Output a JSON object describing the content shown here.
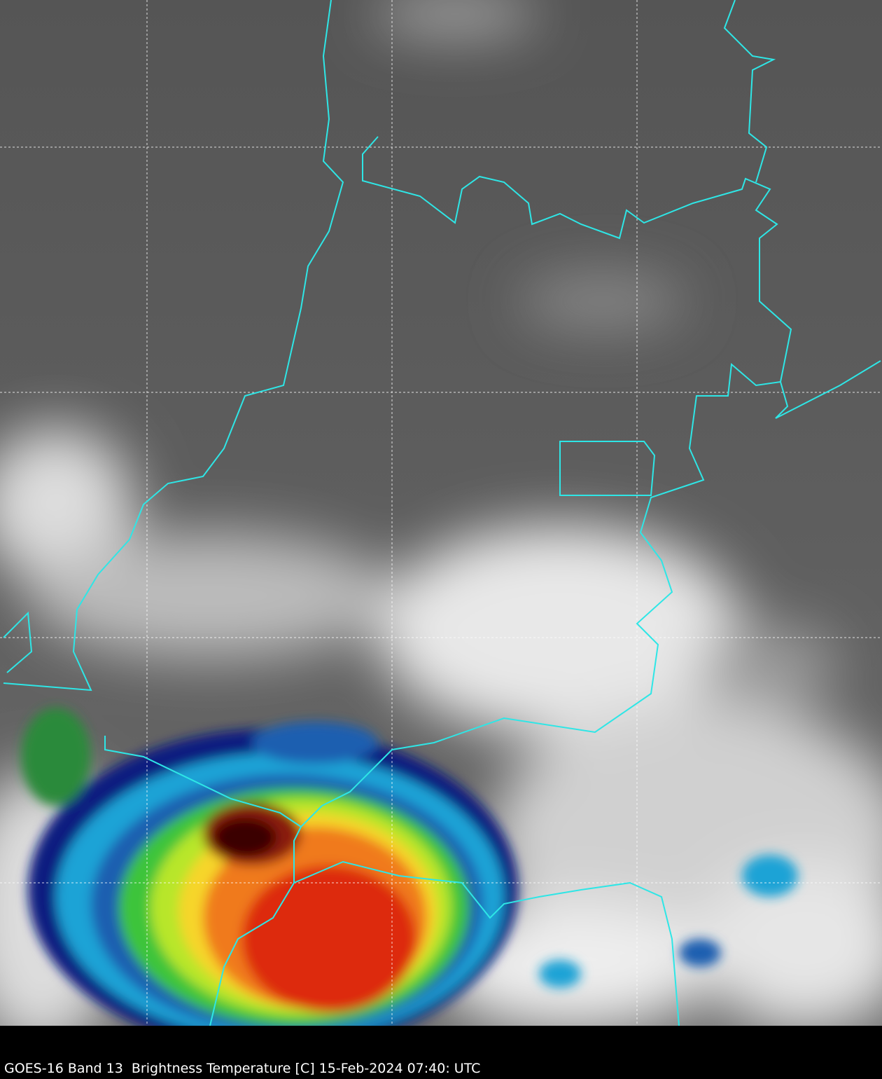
{
  "caption": "GOES-16 Band 13  Brightness Temperature [C] 15-Feb-2024 07:40: UTC"
}
